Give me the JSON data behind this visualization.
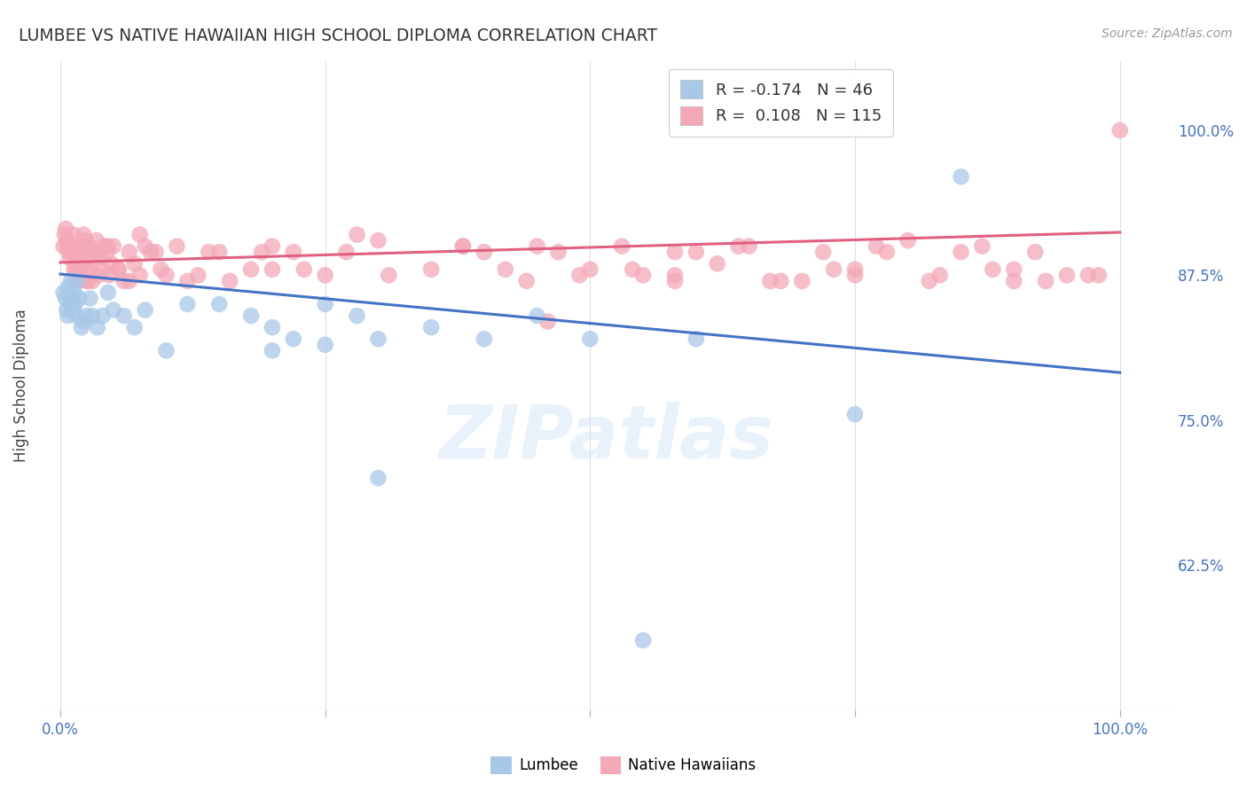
{
  "title": "LUMBEE VS NATIVE HAWAIIAN HIGH SCHOOL DIPLOMA CORRELATION CHART",
  "source": "Source: ZipAtlas.com",
  "ylabel": "High School Diploma",
  "right_yticks": [
    "100.0%",
    "87.5%",
    "75.0%",
    "62.5%"
  ],
  "right_ytick_vals": [
    1.0,
    0.875,
    0.75,
    0.625
  ],
  "legend_lumbee": "Lumbee",
  "legend_native": "Native Hawaiians",
  "lumbee_R": "-0.174",
  "lumbee_N": "46",
  "native_R": "0.108",
  "native_N": "115",
  "lumbee_color": "#a8c8e8",
  "native_color": "#f4a8b8",
  "lumbee_line_color": "#4472c4",
  "native_line_color": "#e06080",
  "background_color": "#ffffff",
  "watermark": "ZIPatlas",
  "lumbee_x": [
    0.003,
    0.005,
    0.006,
    0.007,
    0.008,
    0.009,
    0.01,
    0.011,
    0.012,
    0.013,
    0.014,
    0.015,
    0.016,
    0.018,
    0.02,
    0.022,
    0.025,
    0.028,
    0.03,
    0.035,
    0.04,
    0.045,
    0.05,
    0.06,
    0.07,
    0.08,
    0.1,
    0.12,
    0.15,
    0.2,
    0.25,
    0.3,
    0.4,
    0.5,
    0.55,
    0.6,
    0.75,
    0.85,
    0.2,
    0.22,
    0.18,
    0.28,
    0.35,
    0.45,
    0.25,
    0.3
  ],
  "lumbee_y": [
    0.86,
    0.855,
    0.845,
    0.84,
    0.865,
    0.85,
    0.87,
    0.855,
    0.845,
    0.86,
    0.85,
    0.84,
    0.87,
    0.855,
    0.83,
    0.835,
    0.84,
    0.855,
    0.84,
    0.83,
    0.84,
    0.86,
    0.845,
    0.84,
    0.83,
    0.845,
    0.81,
    0.85,
    0.85,
    0.81,
    0.815,
    0.82,
    0.82,
    0.82,
    0.56,
    0.82,
    0.755,
    0.96,
    0.83,
    0.82,
    0.84,
    0.84,
    0.83,
    0.84,
    0.85,
    0.7
  ],
  "native_x": [
    0.003,
    0.004,
    0.005,
    0.006,
    0.007,
    0.008,
    0.009,
    0.01,
    0.011,
    0.012,
    0.013,
    0.014,
    0.015,
    0.016,
    0.017,
    0.018,
    0.019,
    0.02,
    0.021,
    0.022,
    0.023,
    0.024,
    0.025,
    0.026,
    0.027,
    0.028,
    0.03,
    0.032,
    0.034,
    0.036,
    0.038,
    0.04,
    0.042,
    0.044,
    0.046,
    0.048,
    0.05,
    0.055,
    0.06,
    0.065,
    0.07,
    0.075,
    0.08,
    0.09,
    0.1,
    0.12,
    0.15,
    0.18,
    0.2,
    0.22,
    0.25,
    0.3,
    0.35,
    0.4,
    0.45,
    0.5,
    0.55,
    0.6,
    0.65,
    0.7,
    0.75,
    0.8,
    0.85,
    0.9,
    0.95,
    1.0,
    0.42,
    0.47,
    0.53,
    0.58,
    0.62,
    0.67,
    0.72,
    0.77,
    0.82,
    0.88,
    0.92,
    0.97,
    0.015,
    0.025,
    0.035,
    0.045,
    0.055,
    0.065,
    0.075,
    0.085,
    0.095,
    0.11,
    0.13,
    0.16,
    0.19,
    0.23,
    0.27,
    0.31,
    0.38,
    0.44,
    0.49,
    0.54,
    0.58,
    0.64,
    0.68,
    0.73,
    0.78,
    0.83,
    0.87,
    0.93,
    0.98,
    0.2,
    0.38,
    0.58,
    0.75,
    0.9,
    0.14,
    0.28,
    0.46
  ],
  "native_y": [
    0.9,
    0.91,
    0.915,
    0.905,
    0.9,
    0.895,
    0.89,
    0.9,
    0.895,
    0.91,
    0.88,
    0.875,
    0.885,
    0.9,
    0.89,
    0.87,
    0.88,
    0.895,
    0.9,
    0.91,
    0.895,
    0.905,
    0.885,
    0.87,
    0.9,
    0.88,
    0.87,
    0.895,
    0.905,
    0.875,
    0.89,
    0.88,
    0.9,
    0.895,
    0.875,
    0.885,
    0.9,
    0.88,
    0.87,
    0.895,
    0.885,
    0.91,
    0.9,
    0.895,
    0.875,
    0.87,
    0.895,
    0.88,
    0.9,
    0.895,
    0.875,
    0.905,
    0.88,
    0.895,
    0.9,
    0.88,
    0.875,
    0.895,
    0.9,
    0.87,
    0.88,
    0.905,
    0.895,
    0.87,
    0.875,
    1.0,
    0.88,
    0.895,
    0.9,
    0.875,
    0.885,
    0.87,
    0.895,
    0.9,
    0.87,
    0.88,
    0.895,
    0.875,
    0.88,
    0.87,
    0.895,
    0.9,
    0.88,
    0.87,
    0.875,
    0.895,
    0.88,
    0.9,
    0.875,
    0.87,
    0.895,
    0.88,
    0.895,
    0.875,
    0.9,
    0.87,
    0.875,
    0.88,
    0.895,
    0.9,
    0.87,
    0.88,
    0.895,
    0.875,
    0.9,
    0.87,
    0.875,
    0.88,
    0.9,
    0.87,
    0.875,
    0.88,
    0.895,
    0.91,
    0.835
  ],
  "lumbee_trend_x": [
    0.0,
    1.0
  ],
  "lumbee_trend_y": [
    0.876,
    0.791
  ],
  "native_trend_x": [
    0.0,
    1.0
  ],
  "native_trend_y": [
    0.886,
    0.912
  ],
  "xlim": [
    -0.02,
    1.05
  ],
  "ylim": [
    0.5,
    1.06
  ],
  "grid_color": "#e0e0e0",
  "tick_color": "#4472c4"
}
